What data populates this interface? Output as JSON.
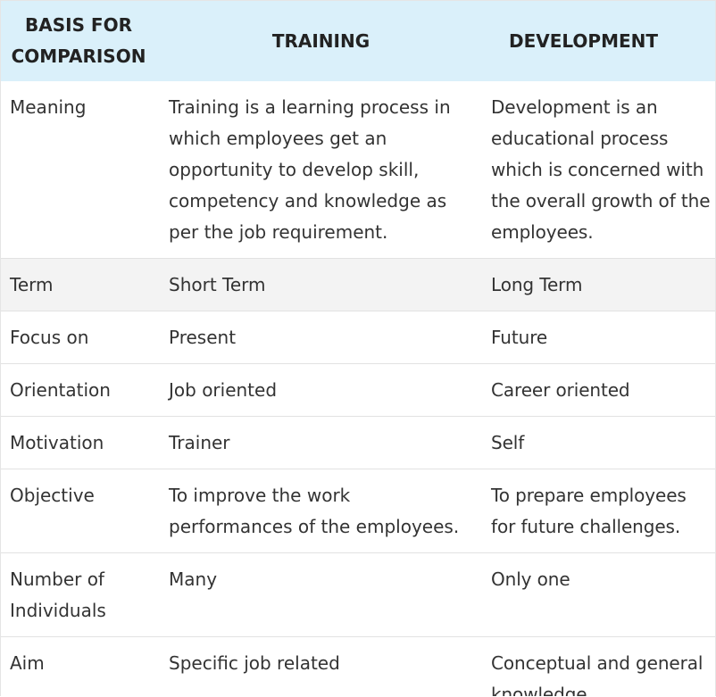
{
  "table": {
    "headers": [
      "BASIS FOR COMPARISON",
      "TRAINING",
      "DEVELOPMENT"
    ],
    "rows": [
      {
        "basis": "Meaning",
        "training": "Training is a learning process in which employees get an opportunity to develop skill, competency and knowledge as per the job requirement.",
        "development": "Development is an educational process which is concerned with the overall growth of the employees."
      },
      {
        "basis": "Term",
        "training": "Short Term",
        "development": "Long Term"
      },
      {
        "basis": "Focus on",
        "training": "Present",
        "development": "Future"
      },
      {
        "basis": "Orientation",
        "training": "Job oriented",
        "development": "Career oriented"
      },
      {
        "basis": "Motivation",
        "training": "Trainer",
        "development": "Self"
      },
      {
        "basis": "Objective",
        "training": "To improve the work performances of the employees.",
        "development": "To prepare employees for future challenges."
      },
      {
        "basis": "Number of Individuals",
        "training": "Many",
        "development": "Only one"
      },
      {
        "basis": "Aim",
        "training": "Specific job related",
        "development": "Conceptual and general knowledge"
      }
    ]
  },
  "colors": {
    "header_bg": "#daf0fa",
    "alt_row_bg": "#f3f3f3",
    "text": "#333333"
  }
}
